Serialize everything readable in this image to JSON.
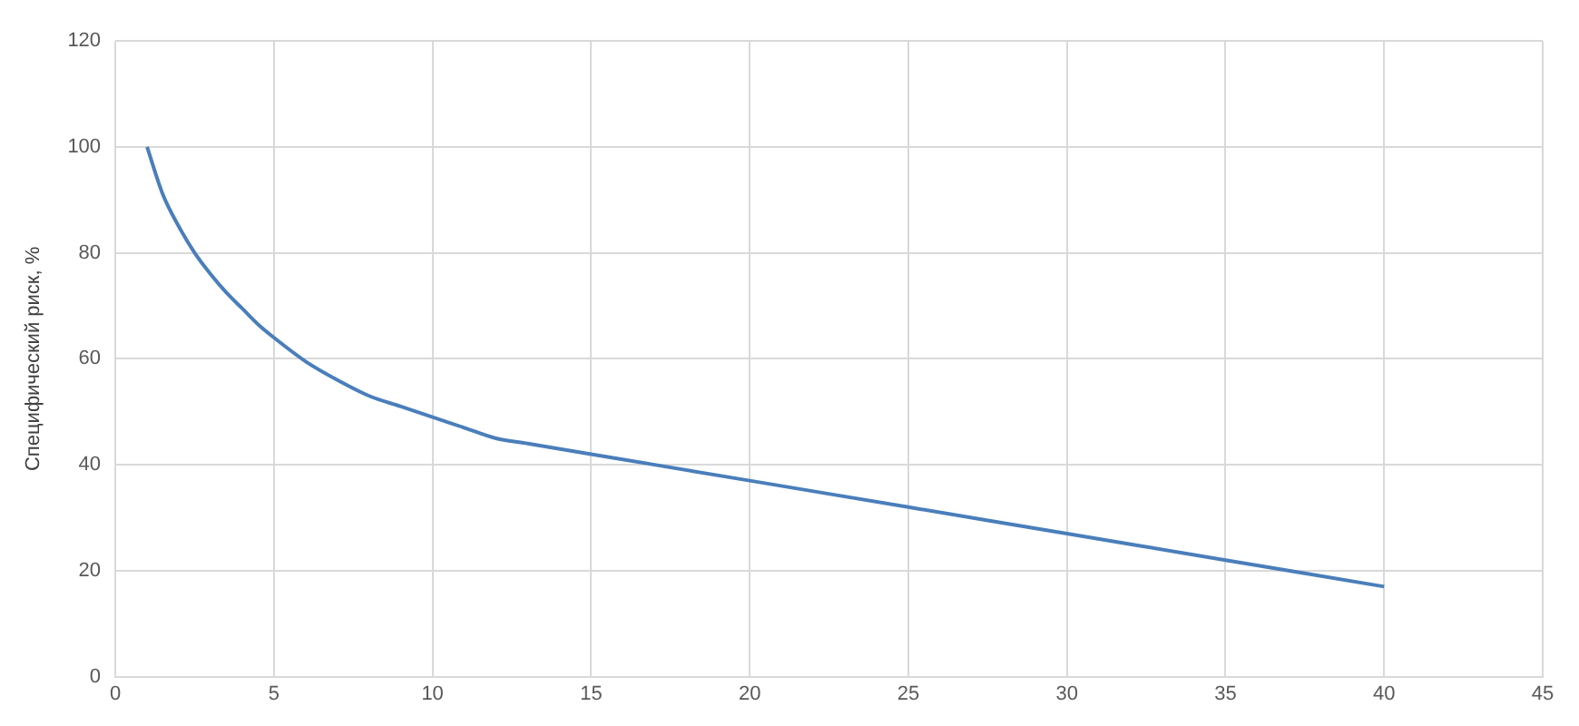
{
  "chart_data": {
    "type": "line",
    "ylabel": "Специфический риск, %",
    "x": [
      1,
      1.5,
      2,
      2.5,
      3,
      3.5,
      4,
      4.5,
      5,
      6,
      7,
      8,
      9,
      10,
      11,
      12,
      13,
      15,
      17,
      20,
      25,
      30,
      35,
      40
    ],
    "series": [
      {
        "color": "#4a7ebb",
        "values": [
          100,
          91,
          85,
          80,
          76,
          72.5,
          69.5,
          66.5,
          64,
          59.5,
          56,
          53,
          51,
          49,
          47,
          45,
          44,
          42,
          40,
          37,
          32,
          27,
          22,
          17
        ]
      }
    ],
    "xlim": [
      0,
      45
    ],
    "xticks": [
      0,
      5,
      10,
      15,
      20,
      25,
      30,
      35,
      40,
      45
    ],
    "ylim": [
      0,
      120
    ],
    "yticks": [
      0,
      20,
      40,
      60,
      80,
      100,
      120
    ],
    "grid": true,
    "legend": false,
    "marker": "none",
    "line_style": "solid"
  }
}
